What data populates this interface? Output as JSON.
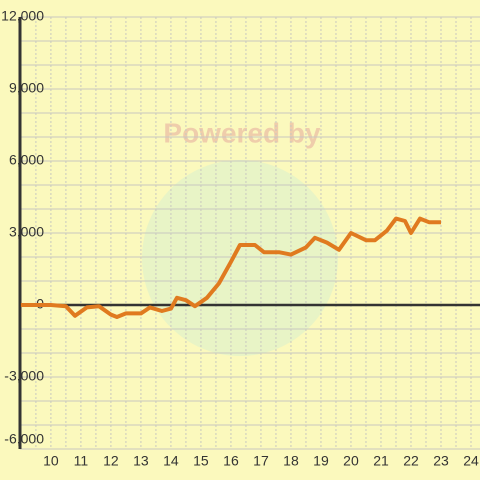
{
  "chart_data": {
    "type": "line",
    "watermark": "Powered by",
    "x": [
      9,
      10,
      10.5,
      10.8,
      11.2,
      11.6,
      12,
      12.2,
      12.5,
      13,
      13.3,
      13.7,
      14,
      14.2,
      14.5,
      14.8,
      15.2,
      15.6,
      16,
      16.3,
      16.8,
      17.1,
      17.6,
      18,
      18.5,
      18.8,
      19.2,
      19.6,
      20,
      20.5,
      20.8,
      21.2,
      21.5,
      21.8,
      22,
      22.3,
      22.6,
      23
    ],
    "series": [
      {
        "color": "#e07a1f",
        "values": [
          0,
          0,
          -50,
          -450,
          -100,
          -50,
          -400,
          -500,
          -350,
          -350,
          -100,
          -250,
          -150,
          300,
          200,
          -50,
          300,
          900,
          1800,
          2500,
          2500,
          2200,
          2200,
          2100,
          2400,
          2800,
          2600,
          2300,
          3000,
          2700,
          2700,
          3100,
          3600,
          3500,
          3000,
          3600,
          3450,
          3450
        ]
      }
    ],
    "xlim": [
      8.97,
      24.3
    ],
    "xticks": [
      10,
      11,
      12,
      13,
      14,
      15,
      16,
      17,
      18,
      19,
      20,
      21,
      22,
      23,
      24
    ],
    "xminor": [
      9.5,
      10.5,
      11.5,
      12.5,
      13.5,
      14.5,
      15.5,
      16.5,
      17.5,
      18.5,
      19.5,
      20.5,
      21.5,
      22.5,
      23.5
    ],
    "ylim": [
      -6000,
      12000
    ],
    "yticks": [
      {
        "value": -6000,
        "label": "-6,000"
      },
      {
        "value": -3000,
        "label": "-3,000"
      },
      0,
      {
        "value": 3000,
        "label": "3,000"
      },
      {
        "value": 6000,
        "label": "6,000"
      },
      {
        "value": 9000,
        "label": "9,000"
      },
      {
        "value": 12000,
        "label": "12,000"
      }
    ],
    "yminor": [
      -5000,
      -4000,
      -2000,
      -1000,
      1000,
      2000,
      4000,
      5000,
      7000,
      8000,
      10000,
      11000
    ],
    "grid": true
  }
}
